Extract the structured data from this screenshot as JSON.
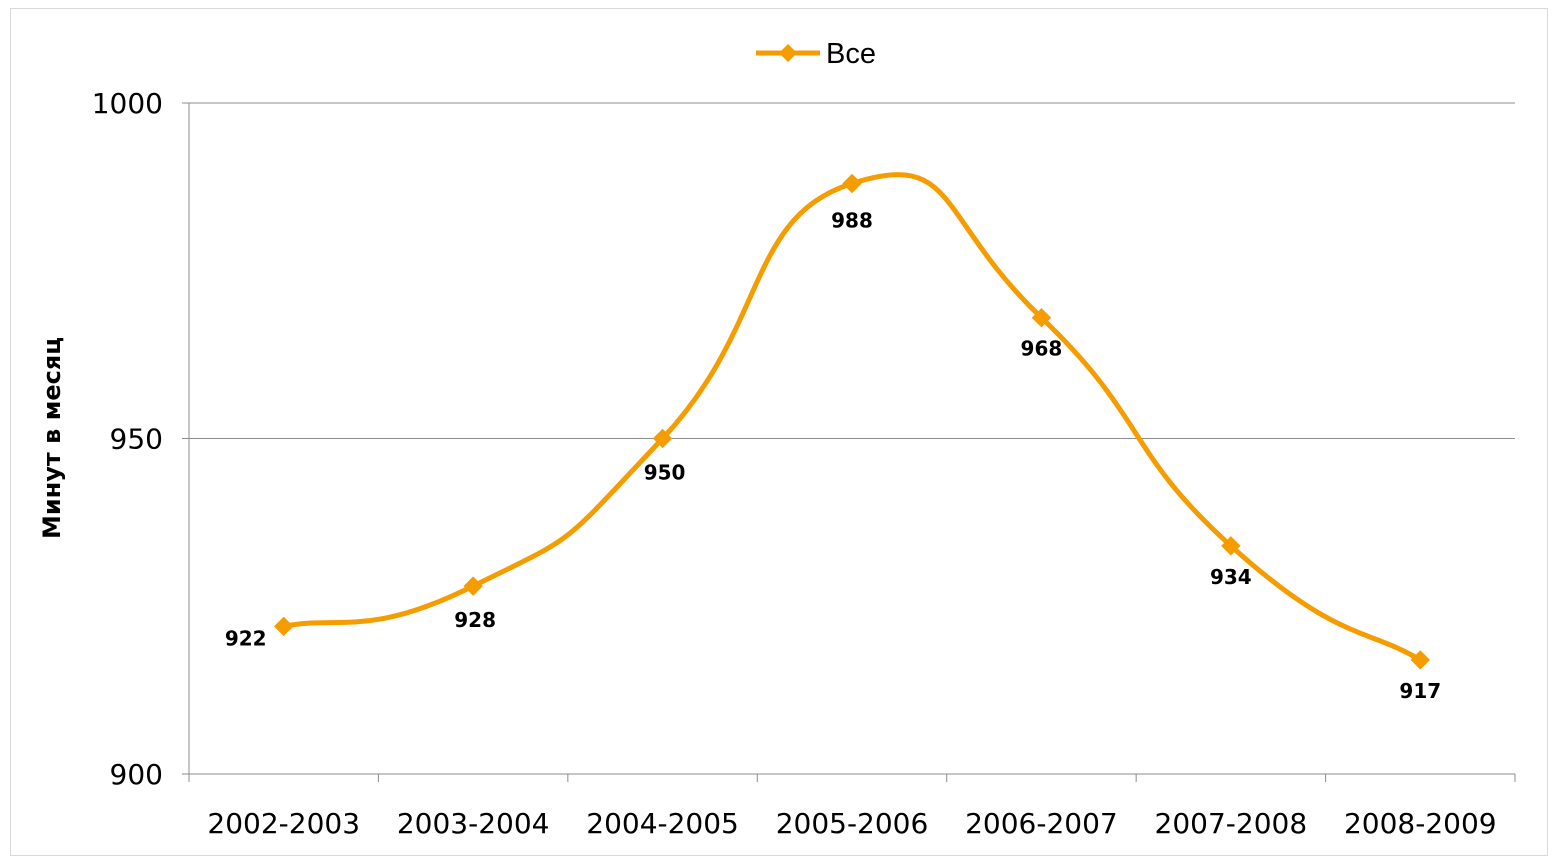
{
  "chart_data": {
    "type": "line",
    "title": "",
    "xlabel": "",
    "ylabel": "Минут в месяц",
    "categories": [
      "2002-2003",
      "2003-2004",
      "2004-2005",
      "2005-2006",
      "2006-2007",
      "2007-2008",
      "2008-2009"
    ],
    "series": [
      {
        "name": "Все",
        "values": [
          922,
          928,
          950,
          988,
          968,
          934,
          917
        ],
        "color": "#f59c00",
        "marker": "diamond",
        "smooth": true
      }
    ],
    "ylim": [
      900,
      1000
    ],
    "yticks": [
      900,
      950,
      1000
    ],
    "grid": "horizontal-major",
    "legend": "top-center"
  }
}
